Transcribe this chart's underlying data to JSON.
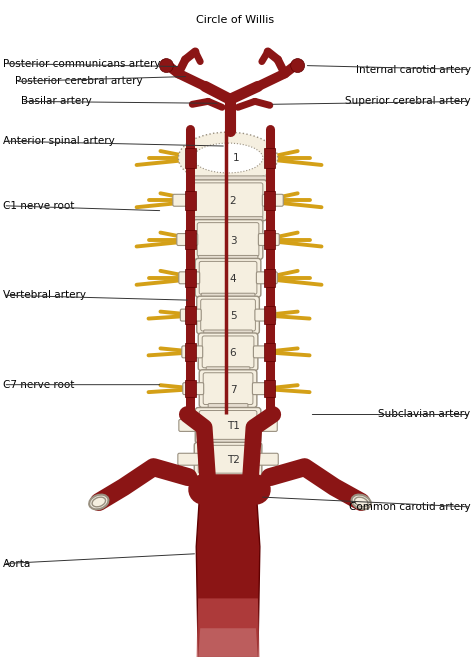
{
  "bg_color": "#ffffff",
  "artery_dark": "#8B1515",
  "artery_mid": "#9B2020",
  "artery_fill": "#B03030",
  "spine_fill": "#F5EFE0",
  "spine_outline": "#999080",
  "nerve_color": "#D4A017",
  "nerve_outline": "#AA8010",
  "text_color": "#000000",
  "line_color": "#333333",
  "labels": {
    "circle_of_willis": "Circle of Willis",
    "post_comm": "Posterior communicans artery",
    "post_cereb": "Posterior cerebral artery",
    "basilar": "Basilar artery",
    "ant_spinal": "Anterior spinal artery",
    "c1_nerve": "C1 nerve root",
    "vertebral": "Vertebral artery",
    "c7_nerve": "C7 nerve root",
    "internal_carotid": "Internal carotid artery",
    "sup_cereb": "Superior cerebral artery",
    "subclavian": "Subclavian artery",
    "common_carotid": "Common carotid artery",
    "aorta": "Aorta"
  },
  "vertebra_labels": [
    "1",
    "2",
    "3",
    "4",
    "5",
    "6",
    "7",
    "T1",
    "T2"
  ],
  "figsize": [
    4.74,
    6.59
  ],
  "dpi": 100
}
